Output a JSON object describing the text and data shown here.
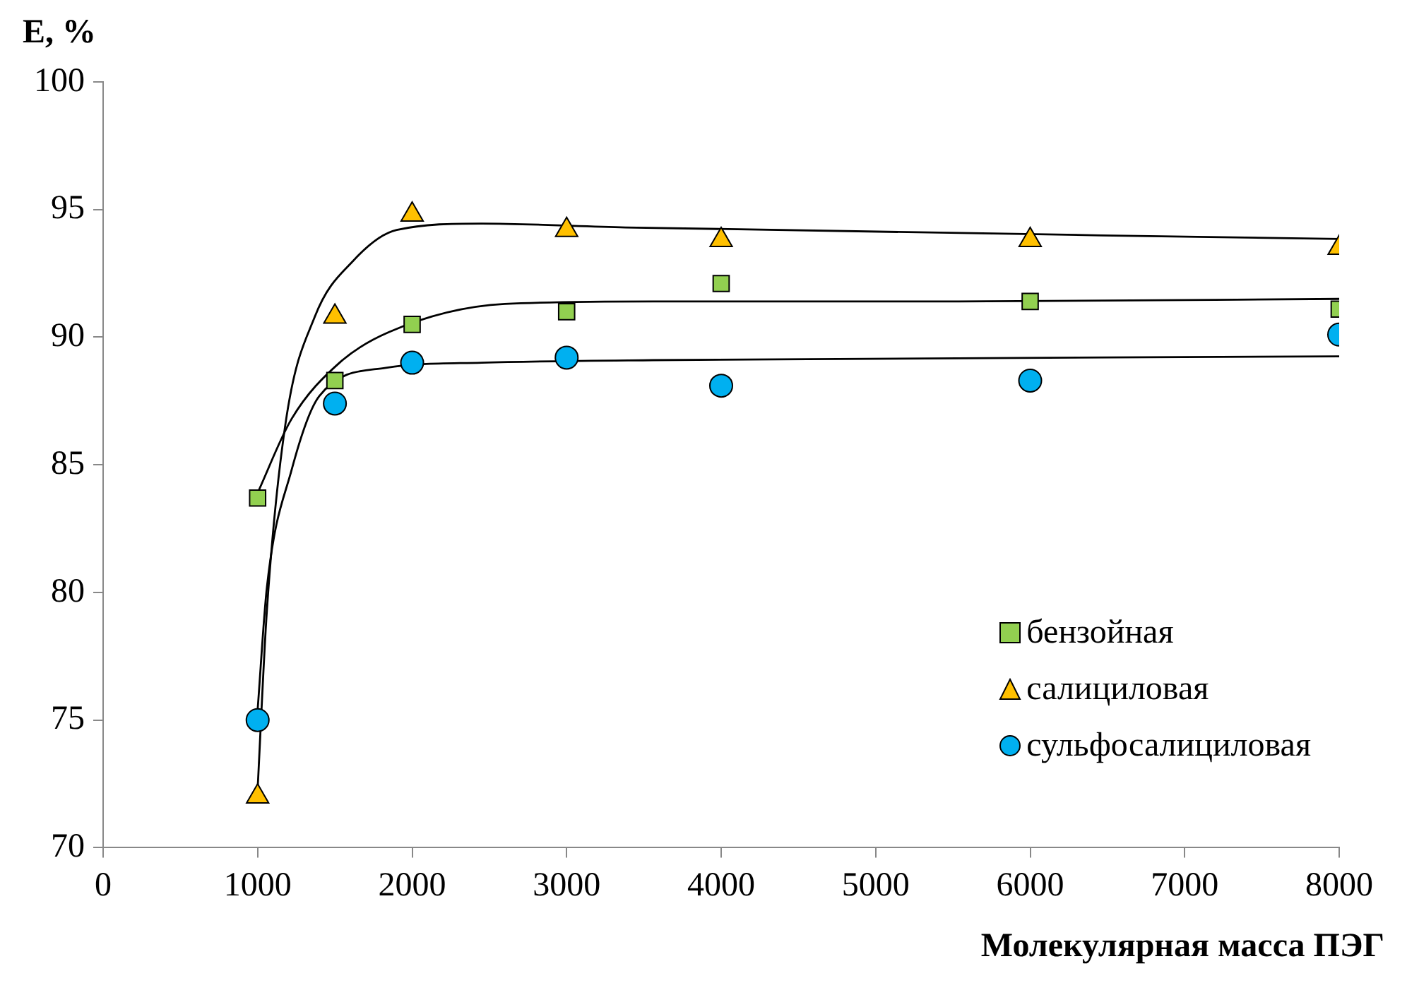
{
  "chart_data": {
    "type": "scatter",
    "xlabel": "Молекулярная масса ПЭГ",
    "ylabel": "E, %",
    "xlim": [
      0,
      8000
    ],
    "xticks": [
      0,
      1000,
      2000,
      3000,
      4000,
      5000,
      6000,
      7000,
      8000
    ],
    "ylim": [
      70,
      100
    ],
    "yticks": [
      70,
      75,
      80,
      85,
      90,
      95,
      100
    ],
    "grid": false,
    "legend": "bottom right",
    "x": [
      1000,
      1500,
      2000,
      3000,
      4000,
      6000,
      8000
    ],
    "series": [
      {
        "name": "бензойная",
        "color": "#92d050",
        "marker": "square",
        "values": [
          83.7,
          88.3,
          90.5,
          91.0,
          92.1,
          91.4,
          91.1
        ]
      },
      {
        "name": "салициловая",
        "color": "#ffc000",
        "marker": "triangle",
        "values": [
          72.0,
          90.8,
          94.8,
          94.2,
          93.8,
          93.8,
          93.5
        ]
      },
      {
        "name": "сульфосалициловая",
        "color": "#00b0f0",
        "marker": "circle",
        "values": [
          75.0,
          87.4,
          89.0,
          89.2,
          88.1,
          88.3,
          90.1
        ]
      },
      {
        "type": "line",
        "color": "#000000",
        "marker": "none",
        "x": [
          1000,
          1220,
          1530,
          1850,
          2600,
          3560,
          5500,
          8000
        ],
        "values": [
          83.9,
          86.8,
          89.0,
          90.2,
          91.3,
          91.4,
          91.4,
          91.5
        ]
      },
      {
        "type": "line",
        "color": "#000000",
        "marker": "none",
        "x": [
          1000,
          1060,
          1180,
          1370,
          1620,
          1900,
          2450,
          3380,
          8000
        ],
        "values": [
          72.3,
          79.3,
          86.6,
          90.8,
          93.0,
          94.2,
          94.45,
          94.3,
          93.85
        ]
      },
      {
        "type": "line",
        "color": "#000000",
        "marker": "none",
        "x": [
          1000,
          1060,
          1220,
          1400,
          1830,
          2450,
          3560,
          8000
        ],
        "values": [
          75.4,
          80.2,
          84.8,
          87.7,
          88.8,
          89.0,
          89.1,
          89.25
        ]
      }
    ]
  }
}
